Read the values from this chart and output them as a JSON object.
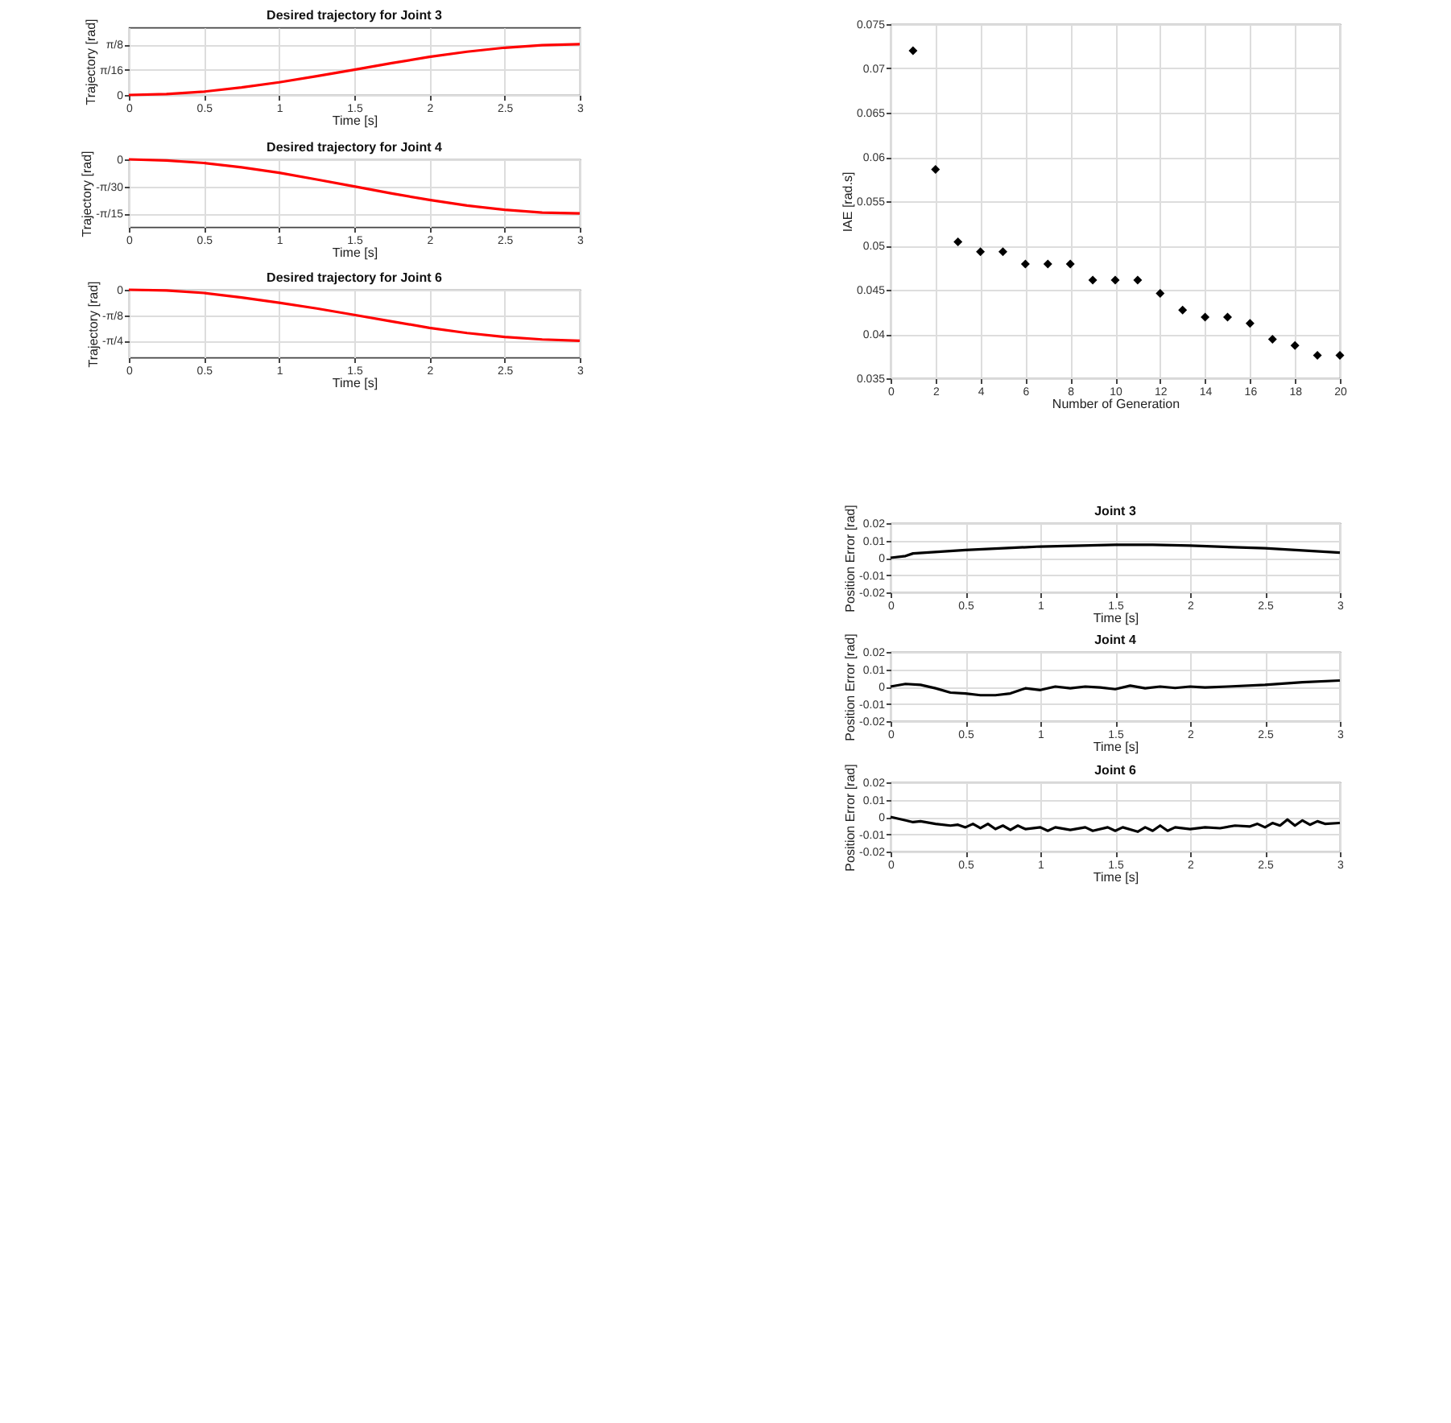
{
  "chart_data": [
    {
      "type": "line",
      "title": "Desired trajectory for Joint 3",
      "xlabel": "Time [s]",
      "ylabel": "Trajectory [rad]",
      "xlim": [
        0,
        3
      ],
      "xticks": [
        0,
        0.5,
        1,
        1.5,
        2,
        2.5,
        3
      ],
      "ylim": [
        0,
        0.5236
      ],
      "yticks": [
        0,
        {
          "value": 0.19635,
          "label": "π/16"
        },
        {
          "value": 0.3927,
          "label": "π/8"
        }
      ],
      "grid": true,
      "x": [
        0,
        0.25,
        0.5,
        0.75,
        1,
        1.25,
        1.5,
        1.75,
        2,
        2.25,
        2.5,
        2.75,
        3
      ],
      "series": [
        {
          "color": "#ff0000",
          "values": [
            0,
            0.007,
            0.026,
            0.058,
            0.098,
            0.146,
            0.196,
            0.247,
            0.295,
            0.335,
            0.366,
            0.386,
            0.393
          ]
        }
      ]
    },
    {
      "type": "line",
      "title": "Desired trajectory for Joint 4",
      "xlabel": "Time [s]",
      "ylabel": "Trajectory [rad]",
      "xlim": [
        0,
        3
      ],
      "xticks": [
        0,
        0.5,
        1,
        1.5,
        2,
        2.5,
        3
      ],
      "ylim": [
        -0.2618,
        0
      ],
      "yticks": [
        {
          "value": -0.2094,
          "label": "-π/15"
        },
        {
          "value": -0.1047,
          "label": "-π/30"
        },
        0
      ],
      "grid": true,
      "x": [
        0,
        0.25,
        0.5,
        0.75,
        1,
        1.25,
        1.5,
        1.75,
        2,
        2.25,
        2.5,
        2.75,
        3
      ],
      "series": [
        {
          "color": "#ff0000",
          "values": [
            0,
            -0.004,
            -0.014,
            -0.031,
            -0.052,
            -0.078,
            -0.105,
            -0.132,
            -0.157,
            -0.179,
            -0.195,
            -0.206,
            -0.209
          ]
        }
      ]
    },
    {
      "type": "line",
      "title": "Desired trajectory for Joint 6",
      "xlabel": "Time [s]",
      "ylabel": "Trajectory [rad]",
      "xlim": [
        0,
        3
      ],
      "xticks": [
        0,
        0.5,
        1,
        1.5,
        2,
        2.5,
        3
      ],
      "ylim": [
        -1.0472,
        0
      ],
      "yticks": [
        {
          "value": -0.7854,
          "label": "-π/4"
        },
        {
          "value": -0.3927,
          "label": "-π/8"
        },
        0
      ],
      "grid": true,
      "x": [
        0,
        0.25,
        0.5,
        0.75,
        1,
        1.25,
        1.5,
        1.75,
        2,
        2.25,
        2.5,
        2.75,
        3
      ],
      "series": [
        {
          "color": "#ff0000",
          "values": [
            0,
            -0.01,
            -0.05,
            -0.12,
            -0.2,
            -0.29,
            -0.39,
            -0.49,
            -0.59,
            -0.67,
            -0.73,
            -0.77,
            -0.79
          ]
        }
      ]
    },
    {
      "type": "scatter",
      "xlabel": "Number of Generation",
      "ylabel": "IAE [rad.s]",
      "xlim": [
        0,
        20
      ],
      "xticks": [
        0,
        2,
        4,
        6,
        8,
        10,
        12,
        14,
        16,
        18,
        20
      ],
      "ylim": [
        0.035,
        0.075
      ],
      "yticks": [
        0.035,
        0.04,
        0.045,
        0.05,
        0.055,
        0.06,
        0.065,
        0.07,
        0.075
      ],
      "grid": true,
      "marker": "diamond",
      "x": [
        1,
        2,
        3,
        4,
        5,
        6,
        7,
        8,
        9,
        10,
        11,
        12,
        13,
        14,
        15,
        16,
        17,
        18,
        19,
        20
      ],
      "series": [
        {
          "color": "#000000",
          "values": [
            0.072,
            0.0586,
            0.0504,
            0.0493,
            0.0493,
            0.0479,
            0.0479,
            0.0479,
            0.0461,
            0.0461,
            0.0461,
            0.0446,
            0.0427,
            0.0419,
            0.0419,
            0.0412,
            0.0394,
            0.0387,
            0.0376,
            0.0376
          ]
        }
      ]
    },
    {
      "type": "line",
      "title": "Joint 3",
      "xlabel": "Time [s]",
      "ylabel": "Position Error [rad]",
      "xlim": [
        0,
        3
      ],
      "xticks": [
        0,
        0.5,
        1,
        1.5,
        2,
        2.5,
        3
      ],
      "ylim": [
        -0.02,
        0.02
      ],
      "yticks": [
        -0.02,
        -0.01,
        0,
        0.01,
        0.02
      ],
      "grid": true,
      "x": [
        0,
        0.1,
        0.15,
        0.5,
        1,
        1.5,
        1.75,
        2,
        2.5,
        3
      ],
      "series": [
        {
          "color": "#000000",
          "values": [
            0,
            0.001,
            0.0025,
            0.0045,
            0.0065,
            0.0075,
            0.0075,
            0.007,
            0.0055,
            0.003
          ]
        }
      ]
    },
    {
      "type": "line",
      "title": "Joint 4",
      "xlabel": "Time [s]",
      "ylabel": "Position Error [rad]",
      "xlim": [
        0,
        3
      ],
      "xticks": [
        0,
        0.5,
        1,
        1.5,
        2,
        2.5,
        3
      ],
      "ylim": [
        -0.02,
        0.02
      ],
      "yticks": [
        -0.02,
        -0.01,
        0,
        0.01,
        0.02
      ],
      "grid": true,
      "x": [
        0,
        0.1,
        0.2,
        0.3,
        0.4,
        0.5,
        0.6,
        0.7,
        0.8,
        0.9,
        1,
        1.1,
        1.2,
        1.3,
        1.4,
        1.5,
        1.6,
        1.7,
        1.8,
        1.9,
        2,
        2.1,
        2.25,
        2.5,
        2.75,
        3
      ],
      "series": [
        {
          "color": "#000000",
          "values": [
            0,
            0.0015,
            0.001,
            -0.001,
            -0.0035,
            -0.004,
            -0.005,
            -0.005,
            -0.004,
            -0.001,
            -0.002,
            0,
            -0.001,
            0,
            -0.0005,
            -0.0015,
            0.0005,
            -0.001,
            0,
            -0.0008,
            0,
            -0.0005,
            0,
            0.001,
            0.0025,
            0.0035
          ]
        }
      ]
    },
    {
      "type": "line",
      "title": "Joint 6",
      "xlabel": "Time [s]",
      "ylabel": "Position Error [rad]",
      "xlim": [
        0,
        3
      ],
      "xticks": [
        0,
        0.5,
        1,
        1.5,
        2,
        2.5,
        3
      ],
      "ylim": [
        -0.02,
        0.02
      ],
      "yticks": [
        -0.02,
        -0.01,
        0,
        0.01,
        0.02
      ],
      "grid": true,
      "x": [
        0,
        0.1,
        0.15,
        0.2,
        0.3,
        0.4,
        0.45,
        0.5,
        0.55,
        0.6,
        0.65,
        0.7,
        0.75,
        0.8,
        0.85,
        0.9,
        1,
        1.05,
        1.1,
        1.2,
        1.3,
        1.35,
        1.45,
        1.5,
        1.55,
        1.65,
        1.7,
        1.75,
        1.8,
        1.85,
        1.9,
        2,
        2.1,
        2.2,
        2.3,
        2.4,
        2.45,
        2.5,
        2.55,
        2.6,
        2.65,
        2.7,
        2.75,
        2.8,
        2.85,
        2.9,
        3
      ],
      "series": [
        {
          "color": "#000000",
          "values": [
            0,
            -0.002,
            -0.003,
            -0.0025,
            -0.004,
            -0.005,
            -0.0045,
            -0.006,
            -0.004,
            -0.0065,
            -0.004,
            -0.007,
            -0.005,
            -0.0075,
            -0.005,
            -0.007,
            -0.006,
            -0.008,
            -0.006,
            -0.0075,
            -0.006,
            -0.008,
            -0.006,
            -0.008,
            -0.006,
            -0.0085,
            -0.006,
            -0.008,
            -0.005,
            -0.008,
            -0.006,
            -0.007,
            -0.006,
            -0.0065,
            -0.005,
            -0.0055,
            -0.004,
            -0.006,
            -0.0035,
            -0.005,
            -0.0015,
            -0.005,
            -0.002,
            -0.0045,
            -0.0025,
            -0.004,
            -0.0035
          ]
        }
      ]
    }
  ]
}
